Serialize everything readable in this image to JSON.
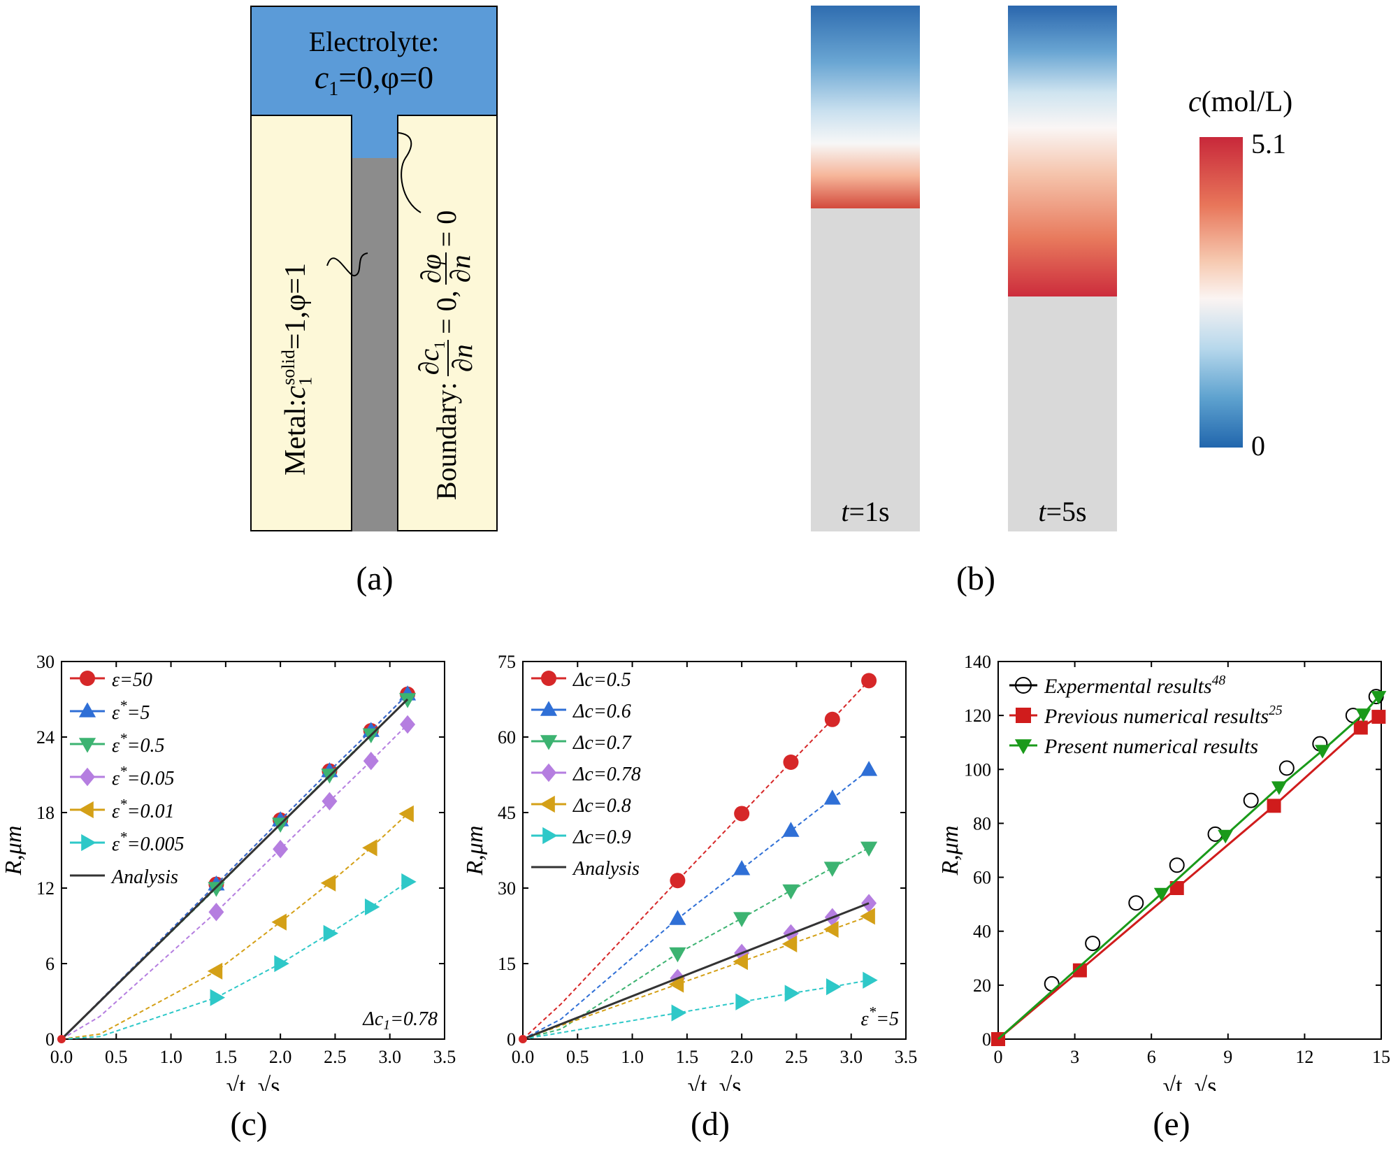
{
  "panel_a": {
    "caption": "(a)",
    "electrolyte_title": "Electrolyte:",
    "electrolyte_cond_c": "c",
    "electrolyte_cond_sub": "1",
    "electrolyte_cond_rest": "=0,φ=0",
    "metal_label": "Metal:",
    "metal_c": "c",
    "metal_sub": "1",
    "metal_sup": "solid",
    "metal_rest": "=1,φ=1",
    "boundary_label": "Boundary:",
    "boundary_num1": "∂c",
    "boundary_num1_sub": "1",
    "boundary_den": "∂n",
    "boundary_eq1": "= 0,",
    "boundary_num2": "∂φ",
    "boundary_eq2": "= 0",
    "colors": {
      "electrolyte": "#5b9bd8",
      "metal": "#fdf8d8",
      "pit": "#8c8c8c"
    }
  },
  "panel_b": {
    "caption": "(b)",
    "bar1_label": "t",
    "bar1_label_rest": "=1s",
    "bar2_label": "t",
    "bar2_label_rest": "=5s",
    "colorbar_title_c": "c",
    "colorbar_title_rest": "(mol/L)",
    "colorbar_max": "5.1",
    "colorbar_min": "0"
  },
  "chart_data": [
    {
      "type": "line",
      "id": "c",
      "caption": "(c)",
      "xlabel": "√t, √s",
      "ylabel": "R,μm",
      "xlim": [
        0,
        3.5
      ],
      "ylim": [
        0,
        30
      ],
      "xticks": [
        "0.0",
        "0.5",
        "1.0",
        "1.5",
        "2.0",
        "2.5",
        "3.0",
        "3.5"
      ],
      "yticks": [
        "0",
        "6",
        "12",
        "18",
        "24",
        "30"
      ],
      "annotation": "Δc1=0.78",
      "series": [
        {
          "name": "ε=50",
          "marker": "circle",
          "color": "#d62728",
          "x": [
            0,
            1.414,
            2.0,
            2.449,
            2.828,
            3.162
          ],
          "y": [
            0,
            12.3,
            17.4,
            21.3,
            24.5,
            27.4
          ]
        },
        {
          "name": "ε*=5",
          "marker": "triangle-up",
          "color": "#2f6fd6",
          "x": [
            0,
            1.414,
            2.0,
            2.449,
            2.828,
            3.162
          ],
          "y": [
            0,
            12.3,
            17.4,
            21.3,
            24.5,
            27.4
          ]
        },
        {
          "name": "ε*=0.5",
          "marker": "triangle-down",
          "color": "#3cb371",
          "x": [
            0,
            1.414,
            2.0,
            2.449,
            2.828,
            3.162
          ],
          "y": [
            0,
            12.0,
            17.1,
            21.0,
            24.2,
            27.0
          ]
        },
        {
          "name": "ε*=0.05",
          "marker": "diamond",
          "color": "#b57ee0",
          "x": [
            0,
            0.35,
            1.414,
            2.0,
            2.449,
            2.828,
            3.162
          ],
          "y": [
            0,
            1.8,
            10.1,
            15.1,
            18.9,
            22.1,
            25.0
          ]
        },
        {
          "name": "ε*=0.01",
          "marker": "triangle-left",
          "color": "#d4a017",
          "x": [
            0,
            0.35,
            1.414,
            2.0,
            2.449,
            2.828,
            3.162
          ],
          "y": [
            0,
            0.4,
            5.4,
            9.3,
            12.4,
            15.2,
            17.9
          ]
        },
        {
          "name": "ε*=0.005",
          "marker": "triangle-right",
          "color": "#2ec8c8",
          "x": [
            0,
            0.35,
            1.414,
            2.0,
            2.449,
            2.828,
            3.162
          ],
          "y": [
            0,
            0.2,
            3.3,
            6.0,
            8.4,
            10.5,
            12.5
          ]
        },
        {
          "name": "Analysis",
          "marker": "none",
          "color": "#333333",
          "x": [
            0,
            3.162
          ],
          "y": [
            0,
            27.0
          ]
        }
      ]
    },
    {
      "type": "line",
      "id": "d",
      "caption": "(d)",
      "xlabel": "√t, √s",
      "ylabel": "R,μm",
      "xlim": [
        0,
        3.5
      ],
      "ylim": [
        0,
        75
      ],
      "xticks": [
        "0.0",
        "0.5",
        "1.0",
        "1.5",
        "2.0",
        "2.5",
        "3.0",
        "3.5"
      ],
      "yticks": [
        "0",
        "15",
        "30",
        "45",
        "60",
        "75"
      ],
      "annotation": "ε*=5",
      "series": [
        {
          "name": "Δc=0.5",
          "marker": "circle",
          "color": "#d62728",
          "x": [
            0,
            0.35,
            1.414,
            2.0,
            2.449,
            2.828,
            3.162
          ],
          "y": [
            0,
            7.0,
            31.5,
            44.8,
            55.0,
            63.5,
            71.2
          ]
        },
        {
          "name": "Δc=0.6",
          "marker": "triangle-up",
          "color": "#2f6fd6",
          "x": [
            0,
            0.35,
            1.414,
            2.0,
            2.449,
            2.828,
            3.162
          ],
          "y": [
            0,
            4.0,
            23.9,
            33.8,
            41.4,
            47.8,
            53.5
          ]
        },
        {
          "name": "Δc=0.7",
          "marker": "triangle-down",
          "color": "#3cb371",
          "x": [
            0,
            0.35,
            1.414,
            2.0,
            2.449,
            2.828,
            3.162
          ],
          "y": [
            0,
            2.0,
            17.0,
            24.0,
            29.5,
            34.0,
            38.0
          ]
        },
        {
          "name": "Δc=0.78",
          "marker": "diamond",
          "color": "#b57ee0",
          "x": [
            0,
            1.414,
            2.0,
            2.449,
            2.828,
            3.162
          ],
          "y": [
            0,
            12.1,
            17.1,
            21.0,
            24.2,
            27.0
          ]
        },
        {
          "name": "Δc=0.8",
          "marker": "triangle-left",
          "color": "#d4a017",
          "x": [
            0,
            1.414,
            2.0,
            2.449,
            2.828,
            3.162
          ],
          "y": [
            0,
            10.9,
            15.4,
            18.9,
            21.8,
            24.4
          ]
        },
        {
          "name": "Δc=0.9",
          "marker": "triangle-right",
          "color": "#2ec8c8",
          "x": [
            0,
            1.414,
            2.0,
            2.449,
            2.828,
            3.162
          ],
          "y": [
            0,
            5.2,
            7.4,
            9.1,
            10.4,
            11.7
          ]
        },
        {
          "name": "Analysis",
          "marker": "none",
          "color": "#333333",
          "x": [
            0,
            3.162
          ],
          "y": [
            0,
            27.0
          ]
        }
      ]
    },
    {
      "type": "scatter",
      "id": "e",
      "caption": "(e)",
      "xlabel": "√t, √s",
      "ylabel": "R,μm",
      "xlim": [
        0,
        15
      ],
      "ylim": [
        0,
        140
      ],
      "xticks": [
        "0",
        "3",
        "6",
        "9",
        "12",
        "15"
      ],
      "yticks": [
        "0",
        "20",
        "40",
        "60",
        "80",
        "100",
        "120",
        "140"
      ],
      "series": [
        {
          "name": "Expermental results48",
          "marker": "open-circle",
          "color": "#000000",
          "x": [
            2.1,
            3.7,
            5.4,
            7.0,
            8.5,
            9.9,
            11.3,
            12.6,
            13.9,
            14.8
          ],
          "y": [
            20.5,
            35.5,
            50.5,
            64.5,
            76.0,
            88.5,
            100.5,
            109.5,
            120.0,
            127.0
          ]
        },
        {
          "name": "Previous numerical results25",
          "marker": "square",
          "color": "#d01c1c",
          "x": [
            0,
            3.2,
            7.0,
            10.8,
            14.2,
            14.9
          ],
          "y": [
            0,
            25.5,
            56.0,
            86.5,
            115.5,
            119.5
          ]
        },
        {
          "name": "Present numerical results",
          "marker": "triangle-down",
          "color": "#1a9a1a",
          "x": [
            0,
            6.4,
            8.9,
            11.0,
            12.7,
            14.3,
            14.9
          ],
          "y": [
            0,
            54.0,
            75.5,
            93.5,
            107.0,
            120.5,
            127.0
          ]
        }
      ],
      "legend_sup": [
        "48",
        "25",
        ""
      ]
    }
  ]
}
